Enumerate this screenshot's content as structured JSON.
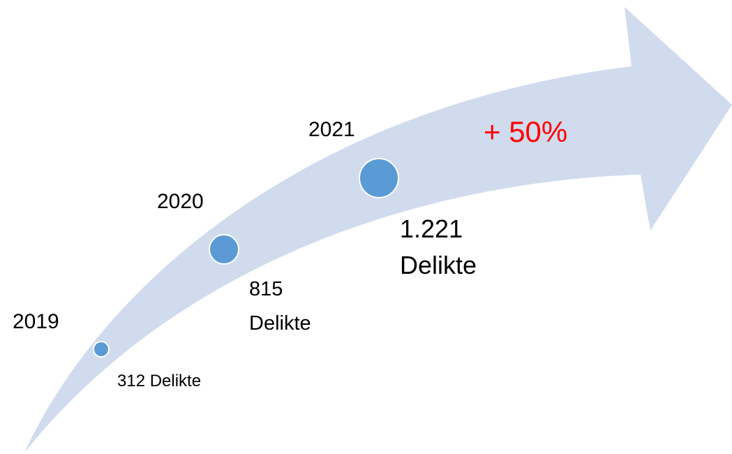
{
  "milestones": [
    {
      "year": "2019",
      "label": [
        "312 Delikte"
      ]
    },
    {
      "year": "2020",
      "label": [
        "815",
        "Delikte"
      ]
    },
    {
      "year": "2021",
      "label": [
        "1.221",
        "Delikte"
      ]
    }
  ],
  "annotation": "+ 50%"
}
